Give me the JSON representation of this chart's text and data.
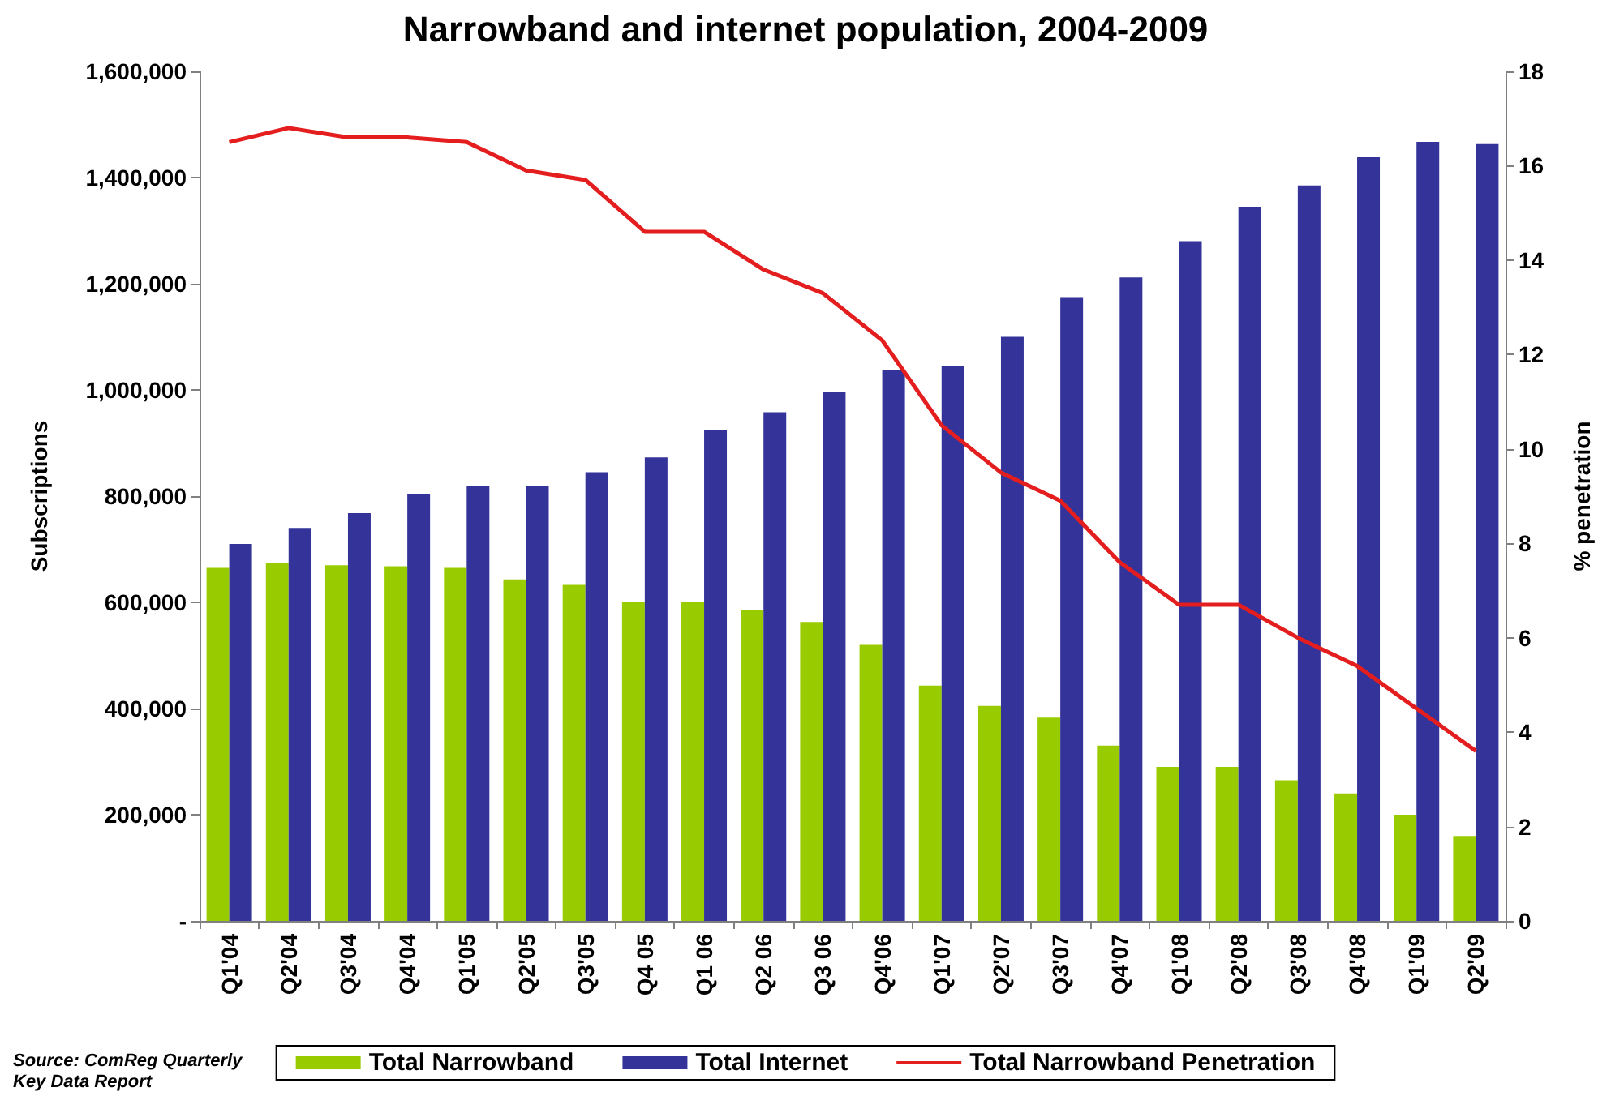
{
  "chart_data": {
    "type": "bar",
    "title": "Narrowband and internet population, 2004-2009",
    "ylabel": "Subscriptions",
    "y2label": "% penetration",
    "categories": [
      "Q1'04",
      "Q2'04",
      "Q3'04",
      "Q4'04",
      "Q1'05",
      "Q2'05",
      "Q3'05",
      "Q4 05",
      "Q1 06",
      "Q2 06",
      "Q3 06",
      "Q4'06",
      "Q1'07",
      "Q2'07",
      "Q3'07",
      "Q4'07",
      "Q1'08",
      "Q2'08",
      "Q3'08",
      "Q4'08",
      "Q1'09",
      "Q2'09"
    ],
    "series": [
      {
        "name": "Total Narrowband",
        "color": "#99cc00",
        "values": [
          665000,
          675000,
          670000,
          668000,
          665000,
          643000,
          633000,
          600000,
          600000,
          585000,
          563000,
          520000,
          443000,
          405000,
          383000,
          330000,
          290000,
          290000,
          265000,
          240000,
          200000,
          160000
        ]
      },
      {
        "name": "Total Internet",
        "color": "#333399",
        "values": [
          710000,
          740000,
          768000,
          803000,
          820000,
          820000,
          845000,
          873000,
          925000,
          958000,
          997000,
          1037000,
          1045000,
          1100000,
          1175000,
          1212000,
          1280000,
          1345000,
          1385000,
          1438000,
          1467000,
          1463000
        ]
      },
      {
        "name": "Total Narrowband Penetration",
        "type": "line",
        "axis": "y2",
        "color": "#e41e1e",
        "marker": "none",
        "values": [
          16.5,
          16.8,
          16.6,
          16.6,
          16.5,
          15.9,
          15.7,
          14.6,
          14.6,
          13.8,
          13.3,
          12.3,
          10.5,
          9.5,
          8.9,
          7.6,
          6.7,
          6.7,
          6.0,
          5.4,
          4.5,
          3.6
        ]
      }
    ],
    "ylim": [
      0,
      1600000
    ],
    "yticks": [
      {
        "value": 0,
        "label": "-"
      },
      {
        "value": 200000,
        "label": "200,000"
      },
      {
        "value": 400000,
        "label": "400,000"
      },
      {
        "value": 600000,
        "label": "600,000"
      },
      {
        "value": 800000,
        "label": "800,000"
      },
      {
        "value": 1000000,
        "label": "1,000,000"
      },
      {
        "value": 1200000,
        "label": "1,200,000"
      },
      {
        "value": 1400000,
        "label": "1,400,000"
      },
      {
        "value": 1600000,
        "label": "1,600,000"
      }
    ],
    "y2lim": [
      0,
      18
    ],
    "y2ticks": [
      0,
      2,
      4,
      6,
      8,
      10,
      12,
      14,
      16,
      18
    ],
    "grid": false,
    "legend": "bottom",
    "annotations": [
      "Source: ComReg Quarterly\nKey Data Report"
    ]
  }
}
